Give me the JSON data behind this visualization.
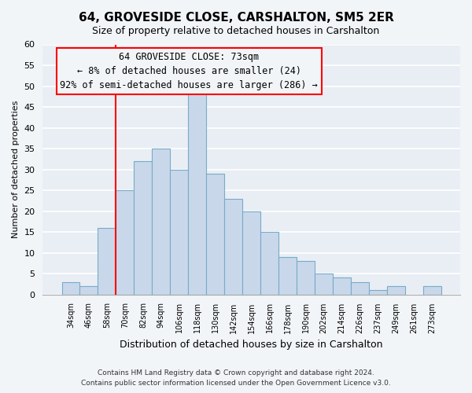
{
  "title": "64, GROVESIDE CLOSE, CARSHALTON, SM5 2ER",
  "subtitle": "Size of property relative to detached houses in Carshalton",
  "xlabel": "Distribution of detached houses by size in Carshalton",
  "ylabel": "Number of detached properties",
  "bin_labels": [
    "34sqm",
    "46sqm",
    "58sqm",
    "70sqm",
    "82sqm",
    "94sqm",
    "106sqm",
    "118sqm",
    "130sqm",
    "142sqm",
    "154sqm",
    "166sqm",
    "178sqm",
    "190sqm",
    "202sqm",
    "214sqm",
    "226sqm",
    "237sqm",
    "249sqm",
    "261sqm",
    "273sqm"
  ],
  "bar_values": [
    3,
    2,
    16,
    25,
    32,
    35,
    30,
    49,
    29,
    23,
    20,
    15,
    9,
    8,
    5,
    4,
    3,
    1,
    2,
    0,
    2
  ],
  "bar_color": "#c8d8ea",
  "bar_edge_color": "#7aaac8",
  "ylim": [
    0,
    60
  ],
  "yticks": [
    0,
    5,
    10,
    15,
    20,
    25,
    30,
    35,
    40,
    45,
    50,
    55,
    60
  ],
  "property_line_bin_index": 3,
  "annotation_text_line1": "64 GROVESIDE CLOSE: 73sqm",
  "annotation_text_line2": "← 8% of detached houses are smaller (24)",
  "annotation_text_line3": "92% of semi-detached houses are larger (286) →",
  "footer_line1": "Contains HM Land Registry data © Crown copyright and database right 2024.",
  "footer_line2": "Contains public sector information licensed under the Open Government Licence v3.0.",
  "background_color": "#f2f5f8",
  "plot_bg_color": "#e8eef4",
  "grid_color": "#ffffff"
}
